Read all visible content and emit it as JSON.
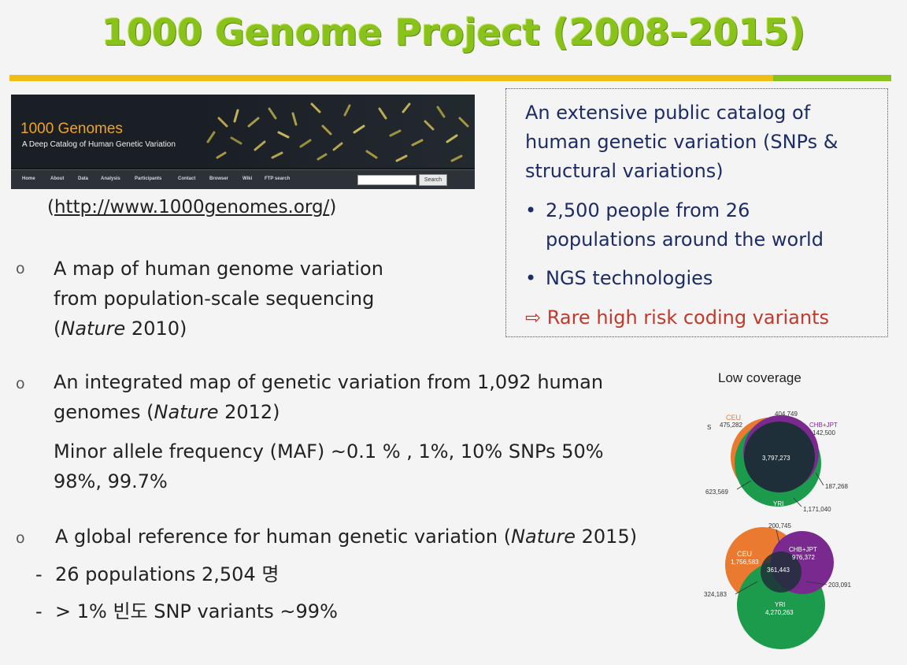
{
  "title": "1000 Genome Project (2008–2015)",
  "banner": {
    "title": "1000 Genomes",
    "subtitle": "A Deep Catalog of Human Genetic Variation",
    "nav": [
      "Home",
      "About",
      "Data",
      "Analysis",
      "Participants",
      "Contact",
      "Browser",
      "Wiki",
      "FTP search"
    ],
    "search_button": "Search"
  },
  "url_prefix": "(",
  "url": "http://www.1000genomes.org/",
  "url_suffix": ")",
  "infobox": {
    "intro_line1": "An extensive public catalog of",
    "intro_line2": "human genetic variation (SNPs &",
    "intro_line3": "structural variations)",
    "bullet_symbol": "•",
    "bullet1_line1": "2,500 people from 26",
    "bullet1_line2": "populations around the world",
    "bullet2": "NGS technologies",
    "arrow_text": "⇨ Rare high risk coding variants"
  },
  "bullets": {
    "marker": "o",
    "b1_line1": "A map of human genome variation",
    "b1_line2": "from population-scale sequencing",
    "b1_line3_open": "(",
    "b1_line3_italic": "Nature",
    "b1_line3_rest": " 2010)",
    "b2_line1": "An integrated map of genetic variation from 1,092 human",
    "b2_line2_pre": "genomes (",
    "b2_line2_italic": "Nature",
    "b2_line2_rest": " 2012)",
    "b2_line3": "Minor allele frequency (MAF) ~0.1 % , 1%, 10% SNPs  50%",
    "b2_line4": "98%, 99.7%",
    "b3_line1_pre": "A global reference for human genetic variation (",
    "b3_line1_italic": "Nature",
    "b3_line1_rest": " 2015)",
    "dash": "-",
    "sub1": "26 populations 2,504 명",
    "sub2": "> 1%  빈도 SNP variants ~99%"
  },
  "venn": {
    "heading": "Low coverage",
    "top": {
      "s_label": "S",
      "ceu_label": "CEU",
      "ceu_value": "475,282",
      "top_value": "404,749",
      "chb_label": "CHB+JPT",
      "chb_value": "142,500",
      "center_value": "3,797,273",
      "right_value": "187,268",
      "left_value": "623,569",
      "yri_label": "YRI",
      "yri_value": "1,171,040"
    },
    "bottom": {
      "top_value": "200,745",
      "ceu_label": "CEU",
      "ceu_value": "1,756,583",
      "chb_label": "CHB+JPT",
      "chb_value": "976,372",
      "center_value": "361,443",
      "right_value": "203,091",
      "left_value": "324,183",
      "yri_label": "YRI",
      "yri_value": "4,270,263"
    },
    "colors": {
      "ceu": "#ea7a30",
      "yri": "#1d9b4d",
      "chb": "#7a2a8f",
      "overlap": "#1e2f3a"
    }
  }
}
